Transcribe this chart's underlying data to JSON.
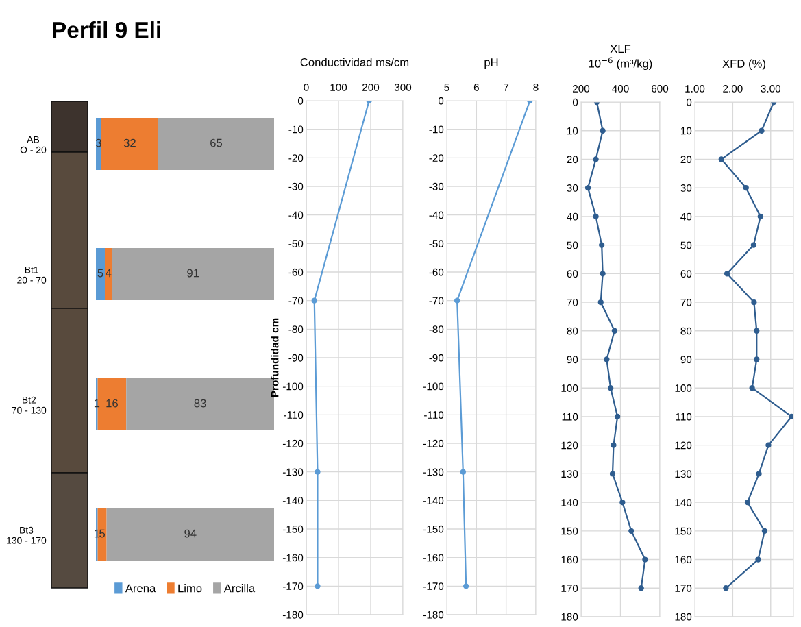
{
  "chart_data": [
    {
      "type": "bar",
      "title": "Perfil 9 Eli",
      "orientation": "horizontal",
      "stacked": true,
      "data_labels": true,
      "legend": "bottom",
      "categories": [
        "AB\nO - 20",
        "Bt1\n20 - 70",
        "Bt2\n70 - 130",
        "Bt3\n130 - 170"
      ],
      "series": [
        {
          "name": "Arena",
          "color": "#5b9bd5",
          "values": [
            3,
            5,
            1,
            1
          ]
        },
        {
          "name": "Limo",
          "color": "#ed7d31",
          "values": [
            32,
            4,
            16,
            5
          ]
        },
        {
          "name": "Arcilla",
          "color": "#a5a5a5",
          "values": [
            65,
            91,
            83,
            94
          ]
        }
      ]
    },
    {
      "type": "line",
      "title": "Conductividad ms/cm",
      "ylabel": "Profundidad cm",
      "grid": true,
      "marker": "circle",
      "line_style": "solid",
      "xlim": [
        0,
        300
      ],
      "xticks": [
        0,
        100,
        200,
        300
      ],
      "ylim": [
        -180,
        0
      ],
      "yticks": [
        -180,
        -170,
        -160,
        -150,
        -140,
        -130,
        -120,
        -110,
        -100,
        -90,
        -80,
        -70,
        -60,
        -50,
        -40,
        -30,
        -20,
        -10,
        0
      ],
      "series": [
        {
          "color": "#5b9bd5",
          "x": [
            195,
            25,
            35,
            35
          ],
          "values": [
            0,
            -70,
            -130,
            -170
          ]
        }
      ]
    },
    {
      "type": "line",
      "title": "pH",
      "grid": true,
      "marker": "circle",
      "line_style": "solid",
      "xlim": [
        5,
        8
      ],
      "xticks": [
        5,
        6,
        7,
        8
      ],
      "ylim": [
        -180,
        0
      ],
      "yticks": [
        -180,
        -170,
        -160,
        -150,
        -140,
        -130,
        -120,
        -110,
        -100,
        -90,
        -80,
        -70,
        -60,
        -50,
        -40,
        -30,
        -20,
        -10,
        0
      ],
      "series": [
        {
          "color": "#5b9bd5",
          "x": [
            7.8,
            5.35,
            5.55,
            5.65
          ],
          "values": [
            0,
            -70,
            -130,
            -170
          ]
        }
      ]
    },
    {
      "type": "line",
      "title": "XLF\n10$^{−6}$ (m³/kg)",
      "grid": true,
      "marker": "circle",
      "line_style": "solid",
      "xlim": [
        200,
        600
      ],
      "xticks": [
        200,
        400,
        600
      ],
      "ylim": [
        180,
        0
      ],
      "yticks": [
        0,
        10,
        20,
        30,
        40,
        50,
        60,
        70,
        80,
        90,
        100,
        110,
        120,
        130,
        140,
        150,
        160,
        170,
        180
      ],
      "series": [
        {
          "color": "#2f5d8f",
          "x": [
            280,
            310,
            275,
            235,
            275,
            305,
            310,
            300,
            370,
            330,
            350,
            385,
            365,
            360,
            410,
            455,
            525,
            505
          ],
          "values": [
            0,
            10,
            20,
            30,
            40,
            50,
            60,
            70,
            80,
            90,
            100,
            110,
            120,
            130,
            140,
            150,
            160,
            170
          ]
        }
      ]
    },
    {
      "type": "line",
      "title": "XFD (%)",
      "grid": true,
      "marker": "circle",
      "line_style": "solid",
      "xlim": [
        1,
        3.6
      ],
      "xticks": [
        {
          "value": 1,
          "label": "1.00"
        },
        {
          "value": 2,
          "label": "2.00"
        },
        {
          "value": 3,
          "label": "3.00"
        }
      ],
      "ylim": [
        180,
        0
      ],
      "yticks": [
        0,
        10,
        20,
        30,
        40,
        50,
        60,
        70,
        80,
        90,
        100,
        110,
        120,
        130,
        140,
        150,
        160,
        170,
        180
      ],
      "series": [
        {
          "color": "#2f5d8f",
          "x": [
            3.08,
            2.76,
            1.7,
            2.35,
            2.73,
            2.55,
            1.85,
            2.56,
            2.63,
            2.63,
            2.51,
            3.55,
            2.94,
            2.69,
            2.39,
            2.84,
            2.67,
            1.82
          ],
          "values": [
            0,
            10,
            20,
            30,
            40,
            50,
            60,
            70,
            80,
            90,
            100,
            110,
            120,
            130,
            140,
            150,
            160,
            170
          ]
        }
      ]
    }
  ]
}
